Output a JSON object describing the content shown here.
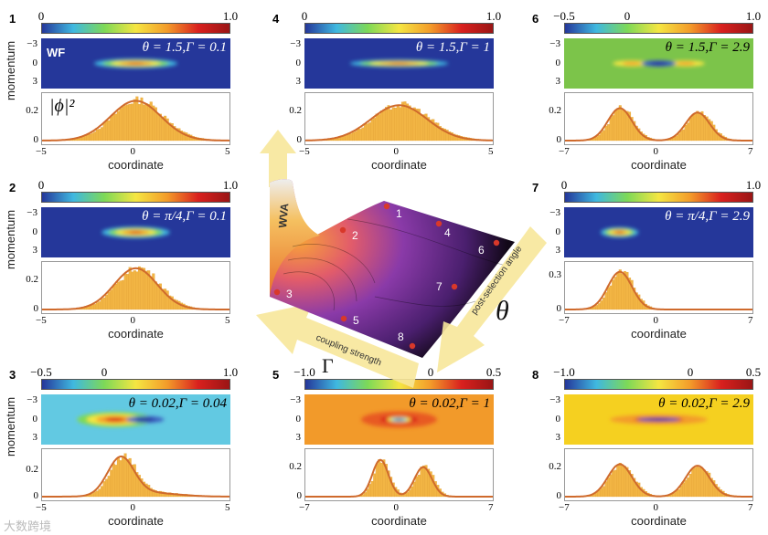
{
  "axes": {
    "xlabel": "coordinate",
    "ylabel": "momentum",
    "momentum_ticks": [
      "3",
      "0",
      "−3"
    ]
  },
  "overlay": {
    "wf_label": "WF",
    "prob_label": "|ϕ|²"
  },
  "colormap": [
    "#25379a",
    "#3fb8e0",
    "#7ed957",
    "#f5e642",
    "#f39c2a",
    "#d9201e",
    "#9a1515"
  ],
  "panels": [
    {
      "id": "1",
      "col": 0,
      "row": 0,
      "cb_labels": [
        "0",
        "1.0"
      ],
      "label": "θ = 1.5,Γ = 0.1",
      "label_dark": false,
      "xrange": [
        -5,
        5
      ],
      "xticks": [
        "−5",
        "0",
        "5"
      ],
      "yticks": [
        "0",
        "0.2"
      ],
      "yvals": [
        0,
        0.2
      ],
      "ymax": 0.31,
      "bg": "#25379a",
      "blobs": [
        {
          "x": 0,
          "y": 0,
          "rx": 2.2,
          "ry": 0.75,
          "colors": [
            "#3fb8e0",
            "#7ed957",
            "#f5e642",
            "#f39c2a",
            "#d9201e"
          ]
        }
      ],
      "peaks": [
        {
          "mu": 0,
          "sigma": 1.35,
          "amp": 0.27
        }
      ],
      "show_wf": true,
      "show_phi": true,
      "show_ylabel": true
    },
    {
      "id": "2",
      "col": 0,
      "row": 1,
      "cb_labels": [
        "0",
        "1.0"
      ],
      "label": "θ = π/4,Γ = 0.1",
      "label_dark": false,
      "xrange": [
        -5,
        5
      ],
      "xticks": [
        "−5",
        "0",
        "5"
      ],
      "yticks": [
        "0",
        "0.2"
      ],
      "yvals": [
        0,
        0.2
      ],
      "ymax": 0.31,
      "bg": "#25379a",
      "blobs": [
        {
          "x": 0,
          "y": 0,
          "rx": 1.8,
          "ry": 0.9,
          "colors": [
            "#3fb8e0",
            "#7ed957",
            "#f5e642",
            "#f39c2a",
            "#d9201e"
          ]
        }
      ],
      "peaks": [
        {
          "mu": 0,
          "sigma": 1.15,
          "amp": 0.28
        }
      ],
      "show_ylabel": true
    },
    {
      "id": "3",
      "col": 0,
      "row": 2,
      "cb_labels": [
        "−0.5",
        "0",
        "1.0"
      ],
      "label": "θ = 0.02,Γ = 0.04",
      "label_dark": true,
      "xrange": [
        -5,
        5
      ],
      "xticks": [
        "−5",
        "0",
        "5"
      ],
      "yticks": [
        "0",
        "0.2"
      ],
      "yvals": [
        0,
        0.2
      ],
      "ymax": 0.34,
      "bg": "#62c9e2",
      "blobs": [
        {
          "x": -1.1,
          "y": 0,
          "rx": 2.0,
          "ry": 1.2,
          "colors": [
            "#7ed957",
            "#f5e642",
            "#f39c2a",
            "#d9201e"
          ]
        },
        {
          "x": 0.5,
          "y": 0,
          "rx": 1.0,
          "ry": 0.55,
          "colors": [
            "#3a60c0",
            "#25379a"
          ]
        }
      ],
      "peaks": [
        {
          "mu": -0.8,
          "sigma": 0.7,
          "amp": 0.28
        },
        {
          "mu": 0.6,
          "sigma": 1.5,
          "amp": 0.03
        }
      ],
      "show_ylabel": true
    },
    {
      "id": "4",
      "col": 1,
      "row": 0,
      "cb_labels": [
        "0",
        "1.0"
      ],
      "label": "θ = 1.5,Γ = 1",
      "label_dark": false,
      "xrange": [
        -5,
        5
      ],
      "xticks": [
        "−5",
        "0",
        "5"
      ],
      "yticks": [
        "0",
        "0.2"
      ],
      "yvals": [
        0,
        0.2
      ],
      "ymax": 0.31,
      "bg": "#25379a",
      "blobs": [
        {
          "x": 0,
          "y": 0,
          "rx": 2.6,
          "ry": 0.6,
          "colors": [
            "#3fb8e0",
            "#7ed957",
            "#f5e642",
            "#f39c2a",
            "#d9201e"
          ]
        }
      ],
      "peaks": [
        {
          "mu": 0,
          "sigma": 1.5,
          "amp": 0.24
        }
      ]
    },
    {
      "id": "5",
      "col": 1,
      "row": 2,
      "cb_labels": [
        "−1.0",
        "0",
        "0.5"
      ],
      "label": "θ = 0.02,Γ = 1",
      "label_dark": true,
      "xrange": [
        -7,
        7
      ],
      "xticks": [
        "−7",
        "0",
        "7"
      ],
      "yticks": [
        "0",
        "0.2"
      ],
      "yvals": [
        0,
        0.2
      ],
      "ymax": 0.31,
      "bg": "#f29a2a",
      "blobs": [
        {
          "x": 0,
          "y": 0,
          "rx": 2.8,
          "ry": 1.3,
          "colors": [
            "#e85a22",
            "#d9201e"
          ]
        },
        {
          "x": 0,
          "y": 0,
          "rx": 0.9,
          "ry": 0.45,
          "colors": [
            "#f5e642",
            "#62c9e2",
            "#25379a"
          ]
        }
      ],
      "peaks": [
        {
          "mu": -1.4,
          "sigma": 0.6,
          "amp": 0.25
        },
        {
          "mu": 1.8,
          "sigma": 0.65,
          "amp": 0.2
        }
      ]
    },
    {
      "id": "6",
      "col": 2,
      "row": 0,
      "cb_labels": [
        "−0.5",
        "0",
        "1.0"
      ],
      "label": "θ = 1.5,Γ = 2.9",
      "label_dark": true,
      "xrange": [
        -7,
        7
      ],
      "xticks": [
        "−7",
        "0",
        "7"
      ],
      "yticks": [
        "0",
        "0.2"
      ],
      "yvals": [
        0,
        0.2
      ],
      "ymax": 0.31,
      "bg": "#7cc44a",
      "blobs": [
        {
          "x": -2.0,
          "y": 0,
          "rx": 1.4,
          "ry": 0.5,
          "colors": [
            "#f5e642",
            "#f39c2a"
          ]
        },
        {
          "x": 2.0,
          "y": 0,
          "rx": 1.4,
          "ry": 0.5,
          "colors": [
            "#f5e642",
            "#f39c2a"
          ]
        },
        {
          "x": 0,
          "y": 0,
          "rx": 1.3,
          "ry": 0.5,
          "colors": [
            "#3a60c0",
            "#25379a"
          ]
        }
      ],
      "peaks": [
        {
          "mu": -2.9,
          "sigma": 0.9,
          "amp": 0.22
        },
        {
          "mu": 2.9,
          "sigma": 0.9,
          "amp": 0.19
        }
      ]
    },
    {
      "id": "7",
      "col": 2,
      "row": 1,
      "cb_labels": [
        "0",
        "1.0"
      ],
      "label": "θ = π/4,Γ = 2.9",
      "label_dark": false,
      "xrange": [
        -7,
        7
      ],
      "xticks": [
        "−7",
        "0",
        "7"
      ],
      "yticks": [
        "0",
        "0.3"
      ],
      "yvals": [
        0,
        0.3
      ],
      "ymax": 0.4,
      "bg": "#25379a",
      "blobs": [
        {
          "x": -2.9,
          "y": 0,
          "rx": 1.4,
          "ry": 0.8,
          "colors": [
            "#3fb8e0",
            "#7ed957",
            "#f5e642",
            "#f39c2a",
            "#d9201e"
          ]
        }
      ],
      "peaks": [
        {
          "mu": -2.9,
          "sigma": 0.9,
          "amp": 0.33
        }
      ]
    },
    {
      "id": "8",
      "col": 2,
      "row": 2,
      "cb_labels": [
        "−1.0",
        "0",
        "0.5"
      ],
      "label": "θ = 0.02,Γ = 2.9",
      "label_dark": true,
      "xrange": [
        -7,
        7
      ],
      "xticks": [
        "−7",
        "0",
        "7"
      ],
      "yticks": [
        "0",
        "0.2"
      ],
      "yvals": [
        0,
        0.2
      ],
      "ymax": 0.31,
      "bg": "#f5d020",
      "blobs": [
        {
          "x": 0,
          "y": 0,
          "rx": 3.6,
          "ry": 0.8,
          "colors": [
            "#f39c2a",
            "#d9201e"
          ]
        },
        {
          "x": 0,
          "y": 0,
          "rx": 1.6,
          "ry": 0.3,
          "colors": [
            "#3a60c0",
            "#25379a"
          ]
        }
      ],
      "peaks": [
        {
          "mu": -2.9,
          "sigma": 0.9,
          "amp": 0.22
        },
        {
          "mu": 2.9,
          "sigma": 0.9,
          "amp": 0.21
        }
      ]
    }
  ],
  "diagram": {
    "wva_label": "WVA",
    "coupling_label": "coupling strength",
    "angle_label": "post-selection angle",
    "theta_symbol": "θ",
    "gamma_symbol": "Γ",
    "points": [
      "1",
      "2",
      "3",
      "4",
      "5",
      "6",
      "7",
      "8"
    ]
  },
  "watermark": "大数跨境"
}
